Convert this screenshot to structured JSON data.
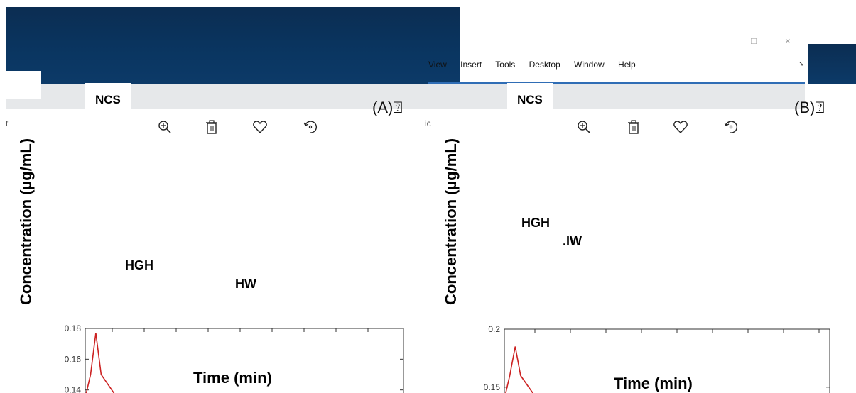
{
  "window": {
    "menu": [
      "View",
      "Insert",
      "Tools",
      "Desktop",
      "Window",
      "Help"
    ],
    "controls": [
      "□",
      "×"
    ]
  },
  "panels": [
    {
      "panel_label": "(A)⍰",
      "tab_label": "NCS",
      "annotations": [
        "HGH",
        "HW"
      ],
      "icons": [
        "zoom-in-icon",
        "trash-icon",
        "heart-icon",
        "rotate-icon"
      ]
    },
    {
      "panel_label": "(B)⍰",
      "tab_label": "NCS",
      "annotations": [
        "HGH",
        ".IW"
      ],
      "icons": [
        "zoom-in-icon",
        "trash-icon",
        "heart-icon",
        "rotate-icon"
      ]
    }
  ],
  "fragments": {
    "left_edge": "t",
    "mid": "ic"
  },
  "colors": {
    "desktop_bg": "#0a3560",
    "toolbar_gray": "#e6e8ea",
    "series": "#cc2222",
    "axis": "#333333"
  },
  "chart_data": [
    {
      "type": "line",
      "xlabel": "Time (min)",
      "ylabel": "Concentration (µg/mL)",
      "yticks": [
        0.18,
        0.16,
        0.14
      ],
      "ylim_visible": [
        0.138,
        0.18
      ],
      "series": [
        {
          "x": [
            0,
            0.05,
            0.1,
            0.15,
            0.3
          ],
          "y": [
            0.135,
            0.15,
            0.177,
            0.15,
            0.135
          ]
        }
      ]
    },
    {
      "type": "line",
      "xlabel": "Time (min)",
      "ylabel": "Concentration (µg/mL)",
      "yticks": [
        0.2,
        0.15
      ],
      "ylim_visible": [
        0.145,
        0.2
      ],
      "series": [
        {
          "x": [
            0,
            0.05,
            0.1,
            0.15,
            0.3
          ],
          "y": [
            0.14,
            0.16,
            0.185,
            0.16,
            0.14
          ]
        }
      ]
    }
  ]
}
